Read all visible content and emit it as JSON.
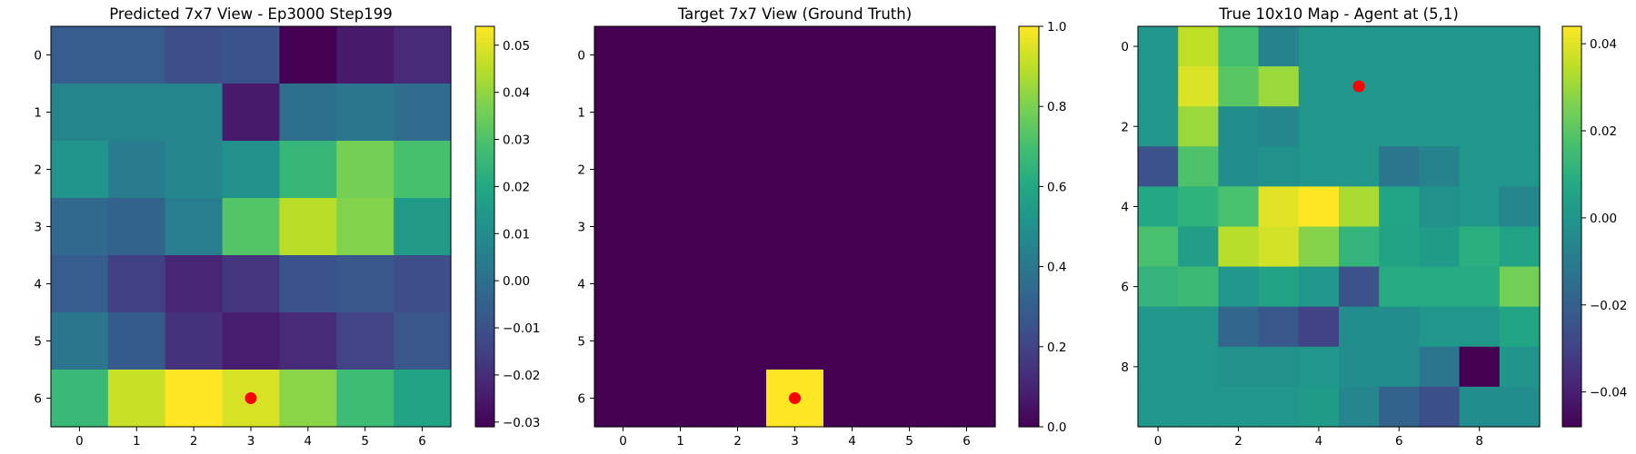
{
  "chart_data": [
    {
      "type": "heatmap",
      "title": "Predicted 7x7 View - Ep3000 Step199",
      "xlabel": "",
      "ylabel": "",
      "x_ticks": [
        0,
        1,
        2,
        3,
        4,
        5,
        6
      ],
      "y_ticks": [
        0,
        1,
        2,
        3,
        4,
        5,
        6
      ],
      "grid": false,
      "colormap": "viridis",
      "vmin": -0.031,
      "vmax": 0.054,
      "colorbar_ticks": [
        {
          "value": 0.05,
          "label": "0.05"
        },
        {
          "value": 0.04,
          "label": "0.04"
        },
        {
          "value": 0.03,
          "label": "0.03"
        },
        {
          "value": 0.02,
          "label": "0.02"
        },
        {
          "value": 0.01,
          "label": "0.01"
        },
        {
          "value": 0.0,
          "label": "0.00"
        },
        {
          "value": -0.01,
          "label": "−0.01"
        },
        {
          "value": -0.02,
          "label": "−0.02"
        },
        {
          "value": -0.03,
          "label": "−0.03"
        }
      ],
      "values": [
        [
          -0.006,
          -0.006,
          -0.011,
          -0.009,
          -0.031,
          -0.025,
          -0.021
        ],
        [
          0.007,
          0.007,
          0.007,
          -0.025,
          0.0,
          0.002,
          -0.001
        ],
        [
          0.013,
          0.004,
          0.008,
          0.011,
          0.025,
          0.036,
          0.029
        ],
        [
          -0.002,
          -0.004,
          0.005,
          0.031,
          0.045,
          0.038,
          0.015
        ],
        [
          -0.006,
          -0.015,
          -0.022,
          -0.018,
          -0.009,
          -0.008,
          -0.011
        ],
        [
          0.002,
          -0.007,
          -0.019,
          -0.024,
          -0.021,
          -0.014,
          -0.008
        ],
        [
          0.026,
          0.047,
          0.054,
          0.049,
          0.039,
          0.027,
          0.018
        ]
      ],
      "marker": {
        "x": 3,
        "y": 6,
        "color": "#ff0000"
      }
    },
    {
      "type": "heatmap",
      "title": "Target 7x7 View (Ground Truth)",
      "xlabel": "",
      "ylabel": "",
      "x_ticks": [
        0,
        1,
        2,
        3,
        4,
        5,
        6
      ],
      "y_ticks": [
        0,
        1,
        2,
        3,
        4,
        5,
        6
      ],
      "grid": false,
      "colormap": "viridis",
      "vmin": 0.0,
      "vmax": 1.0,
      "colorbar_ticks": [
        {
          "value": 1.0,
          "label": "1.0"
        },
        {
          "value": 0.8,
          "label": "0.8"
        },
        {
          "value": 0.6,
          "label": "0.6"
        },
        {
          "value": 0.4,
          "label": "0.4"
        },
        {
          "value": 0.2,
          "label": "0.2"
        },
        {
          "value": 0.0,
          "label": "0.0"
        }
      ],
      "values": [
        [
          0,
          0,
          0,
          0,
          0,
          0,
          0
        ],
        [
          0,
          0,
          0,
          0,
          0,
          0,
          0
        ],
        [
          0,
          0,
          0,
          0,
          0,
          0,
          0
        ],
        [
          0,
          0,
          0,
          0,
          0,
          0,
          0
        ],
        [
          0,
          0,
          0,
          0,
          0,
          0,
          0
        ],
        [
          0,
          0,
          0,
          0,
          0,
          0,
          0
        ],
        [
          0,
          0,
          0,
          1,
          0,
          0,
          0
        ]
      ],
      "marker": {
        "x": 3,
        "y": 6,
        "color": "#ff0000"
      }
    },
    {
      "type": "heatmap",
      "title": "True 10x10 Map - Agent at (5,1)",
      "xlabel": "",
      "ylabel": "",
      "x_ticks": [
        0,
        2,
        4,
        6,
        8
      ],
      "y_ticks": [
        0,
        2,
        4,
        6,
        8
      ],
      "grid": false,
      "colormap": "viridis",
      "vmin": -0.048,
      "vmax": 0.044,
      "colorbar_ticks": [
        {
          "value": 0.04,
          "label": "0.04"
        },
        {
          "value": 0.02,
          "label": "0.02"
        },
        {
          "value": 0.0,
          "label": "0.00"
        },
        {
          "value": -0.02,
          "label": "−0.02"
        },
        {
          "value": -0.04,
          "label": "−0.04"
        }
      ],
      "values": [
        [
          0.0,
          0.035,
          0.016,
          -0.007,
          0.0,
          0.0,
          0.0,
          0.0,
          0.0,
          0.0
        ],
        [
          0.0,
          0.039,
          0.02,
          0.03,
          0.0,
          0.0,
          0.0,
          0.0,
          0.0,
          0.0
        ],
        [
          0.0,
          0.03,
          -0.004,
          -0.006,
          0.0,
          0.0,
          0.0,
          0.0,
          0.0,
          0.0
        ],
        [
          -0.025,
          0.018,
          -0.004,
          -0.002,
          0.0,
          0.0,
          -0.012,
          -0.007,
          0.0,
          0.0
        ],
        [
          0.007,
          0.011,
          0.017,
          0.04,
          0.044,
          0.032,
          0.006,
          -0.002,
          0.0,
          -0.006
        ],
        [
          0.017,
          0.003,
          0.034,
          0.038,
          0.027,
          0.012,
          0.005,
          0.002,
          0.01,
          0.005
        ],
        [
          0.012,
          0.014,
          0.0,
          0.005,
          0.0,
          -0.025,
          0.008,
          0.008,
          0.008,
          0.024
        ],
        [
          0.0,
          0.0,
          -0.018,
          -0.023,
          -0.03,
          -0.004,
          -0.004,
          0.0,
          0.0,
          0.006
        ],
        [
          0.0,
          0.0,
          -0.002,
          -0.002,
          0.0,
          -0.004,
          -0.004,
          -0.012,
          -0.048,
          -0.001
        ],
        [
          0.0,
          0.0,
          0.0,
          0.0,
          0.002,
          -0.006,
          -0.019,
          -0.026,
          -0.004,
          -0.004
        ]
      ],
      "marker": {
        "x": 5,
        "y": 1,
        "color": "#ff0000"
      }
    }
  ]
}
